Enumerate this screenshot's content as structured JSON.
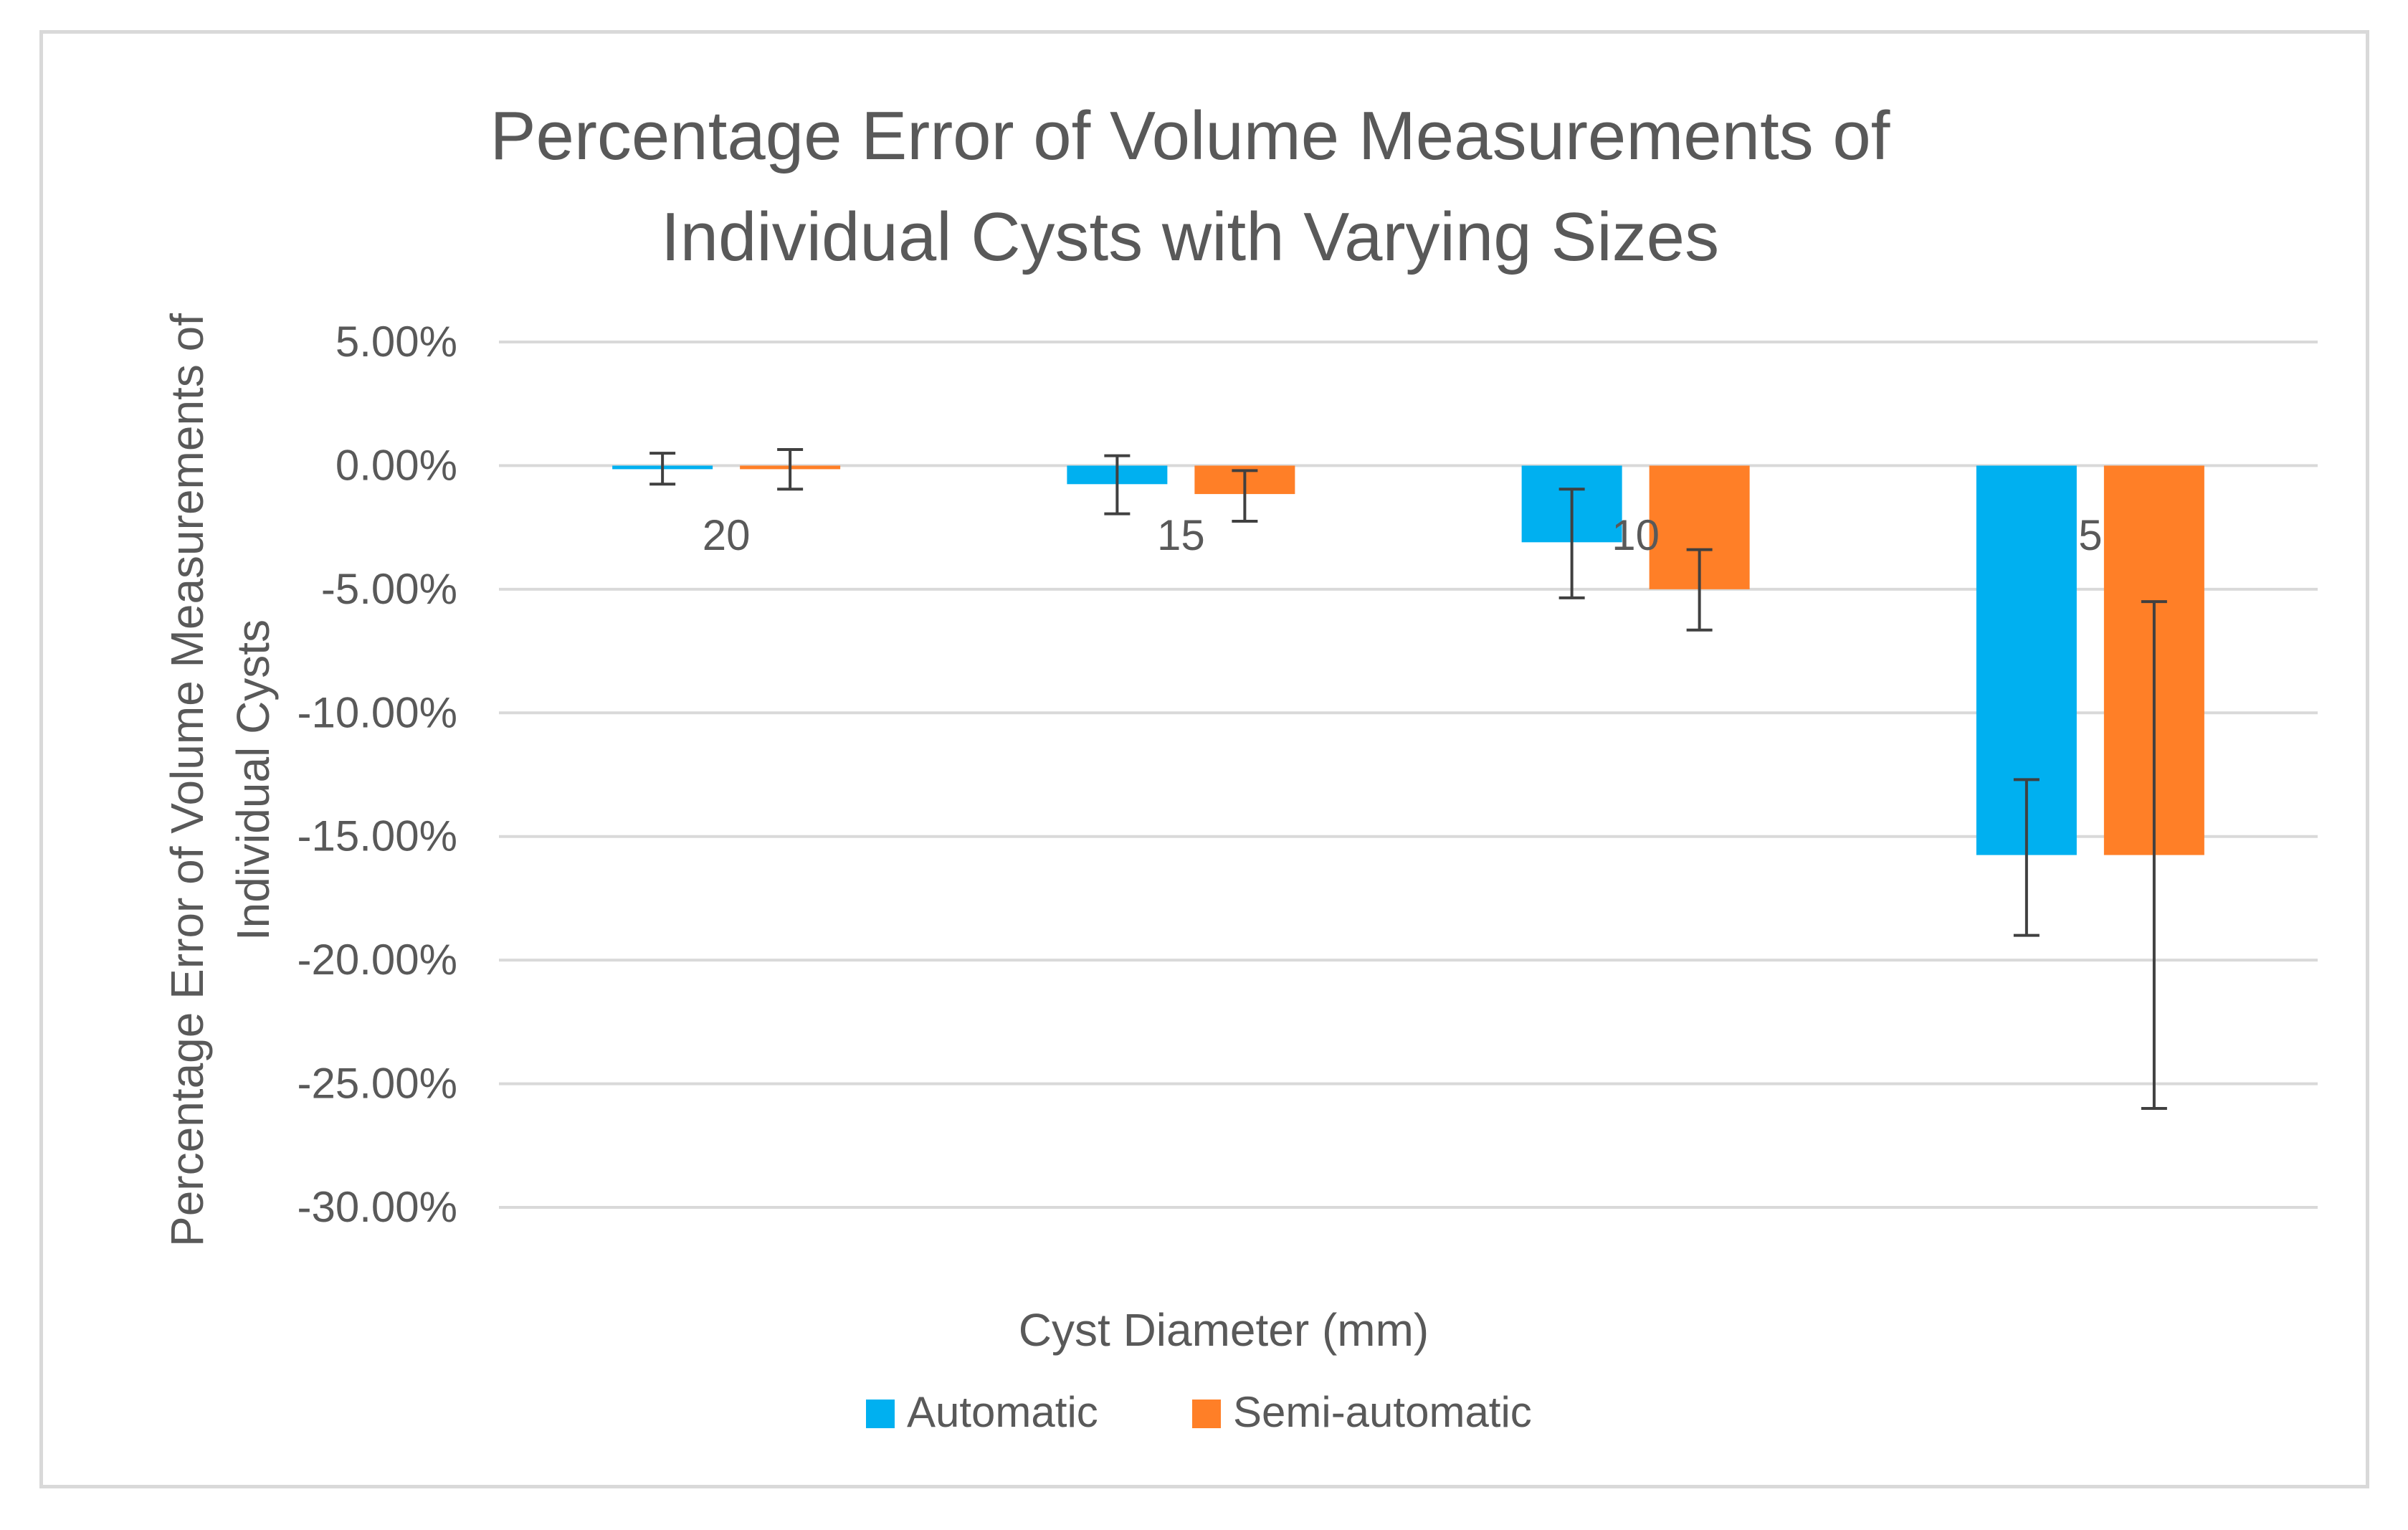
{
  "chart_data": {
    "type": "bar",
    "title_lines": [
      "Percentage Error of Volume Measurements of",
      "Individual Cysts with Varying Sizes"
    ],
    "xlabel": "Cyst Diameter (mm)",
    "ylabel_lines": [
      "Percentage Error of Volume Measurements of",
      "Individual Cysts"
    ],
    "categories": [
      "20",
      "15",
      "10",
      "5"
    ],
    "ylim": [
      -30,
      5
    ],
    "yticks": [
      5,
      0,
      -5,
      -10,
      -15,
      -20,
      -25,
      -30
    ],
    "ytick_labels": [
      "5.00%",
      "0.00%",
      "-5.00%",
      "-10.00%",
      "-15.00%",
      "-20.00%",
      "-25.00%",
      "-30.00%"
    ],
    "grid": true,
    "legend_position": "bottom",
    "series": [
      {
        "name": "Automatic",
        "color": "#00B0F0",
        "values": [
          -0.1,
          -0.75,
          -3.1,
          -15.75
        ],
        "err_upper": [
          0.5,
          0.4,
          -0.95,
          -12.7
        ],
        "err_lower": [
          -0.75,
          -1.95,
          -5.35,
          -19.0
        ]
      },
      {
        "name": "Semi-automatic",
        "color": "#FF7F27",
        "values": [
          -0.1,
          -1.15,
          -5.0,
          -15.75
        ],
        "err_upper": [
          0.65,
          -0.2,
          -3.4,
          -5.5
        ],
        "err_lower": [
          -0.95,
          -2.25,
          -6.65,
          -26.0
        ]
      }
    ]
  }
}
